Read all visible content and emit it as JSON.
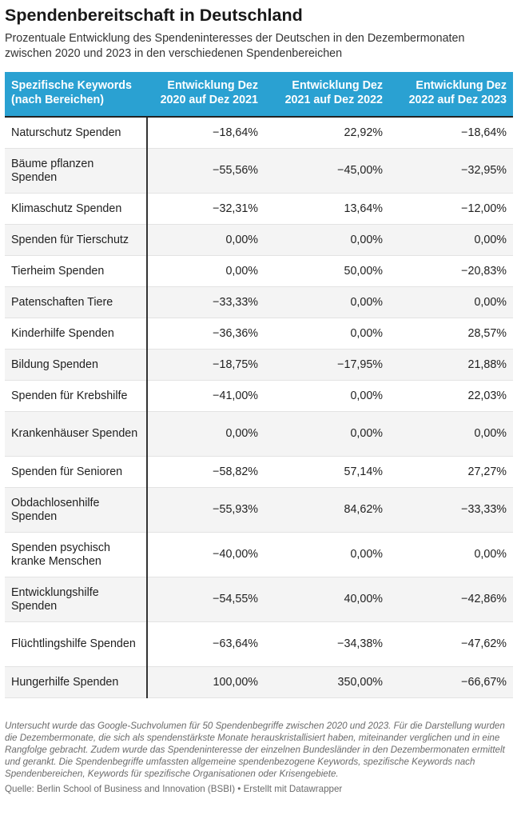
{
  "header": {
    "title": "Spendenbereitschaft in Deutschland",
    "subtitle": "Prozentuale Entwicklung des Spendeninteresses der Deutschen in den Dezembermonaten zwischen 2020 und 2023 in den verschiedenen Spendenbereichen"
  },
  "chart_data": {
    "type": "table",
    "columns": [
      "Spezifische Keywords (nach Bereichen)",
      "Entwicklung Dez 2020 auf Dez 2021",
      "Entwicklung Dez 2021 auf Dez 2022",
      "Entwicklung Dez 2022 auf Dez 2023"
    ],
    "rows": [
      [
        "Naturschutz Spenden",
        "−18,64%",
        "22,92%",
        "−18,64%"
      ],
      [
        "Bäume pflanzen Spenden",
        "−55,56%",
        "−45,00%",
        "−32,95%"
      ],
      [
        "Klimaschutz Spenden",
        "−32,31%",
        "13,64%",
        "−12,00%"
      ],
      [
        "Spenden für Tierschutz",
        "0,00%",
        "0,00%",
        "0,00%"
      ],
      [
        "Tierheim Spenden",
        "0,00%",
        "50,00%",
        "−20,83%"
      ],
      [
        "Patenschaften Tiere",
        "−33,33%",
        "0,00%",
        "0,00%"
      ],
      [
        "Kinderhilfe Spenden",
        "−36,36%",
        "0,00%",
        "28,57%"
      ],
      [
        "Bildung Spenden",
        "−18,75%",
        "−17,95%",
        "21,88%"
      ],
      [
        "Spenden für Krebshilfe",
        "−41,00%",
        "0,00%",
        "22,03%"
      ],
      [
        "Krankenhäuser Spenden",
        "0,00%",
        "0,00%",
        "0,00%"
      ],
      [
        "Spenden für Senioren",
        "−58,82%",
        "57,14%",
        "27,27%"
      ],
      [
        "Obdachlosenhilfe Spenden",
        "−55,93%",
        "84,62%",
        "−33,33%"
      ],
      [
        "Spenden psychisch kranke Menschen",
        "−40,00%",
        "0,00%",
        "0,00%"
      ],
      [
        "Entwicklungshilfe Spenden",
        "−54,55%",
        "40,00%",
        "−42,86%"
      ],
      [
        "Flüchtlingshilfe Spenden",
        "−63,64%",
        "−34,38%",
        "−47,62%"
      ],
      [
        "Hungerhilfe Spenden",
        "100,00%",
        "350,00%",
        "−66,67%"
      ]
    ]
  },
  "footer": {
    "note": "Untersucht wurde das Google-Suchvolumen für 50 Spendenbegriffe zwischen 2020 und 2023. Für die Darstellung wurden die Dezembermonate, die sich als spendenstärkste Monate herauskristallisiert haben, miteinander verglichen und in eine Rangfolge gebracht. Zudem wurde das Spendeninteresse der einzelnen Bundesländer in den Dezembermonaten ermittelt und gerankt. Die Spendenbegriffe umfassten allgemeine spendenbezogene Keywords, spezifische Keywords nach Spendenbereichen, Keywords für spezifische Organisationen oder Krisengebiete.",
    "source": "Quelle: Berlin School of Business and Innovation (BSBI) • Erstellt mit Datawrapper"
  }
}
